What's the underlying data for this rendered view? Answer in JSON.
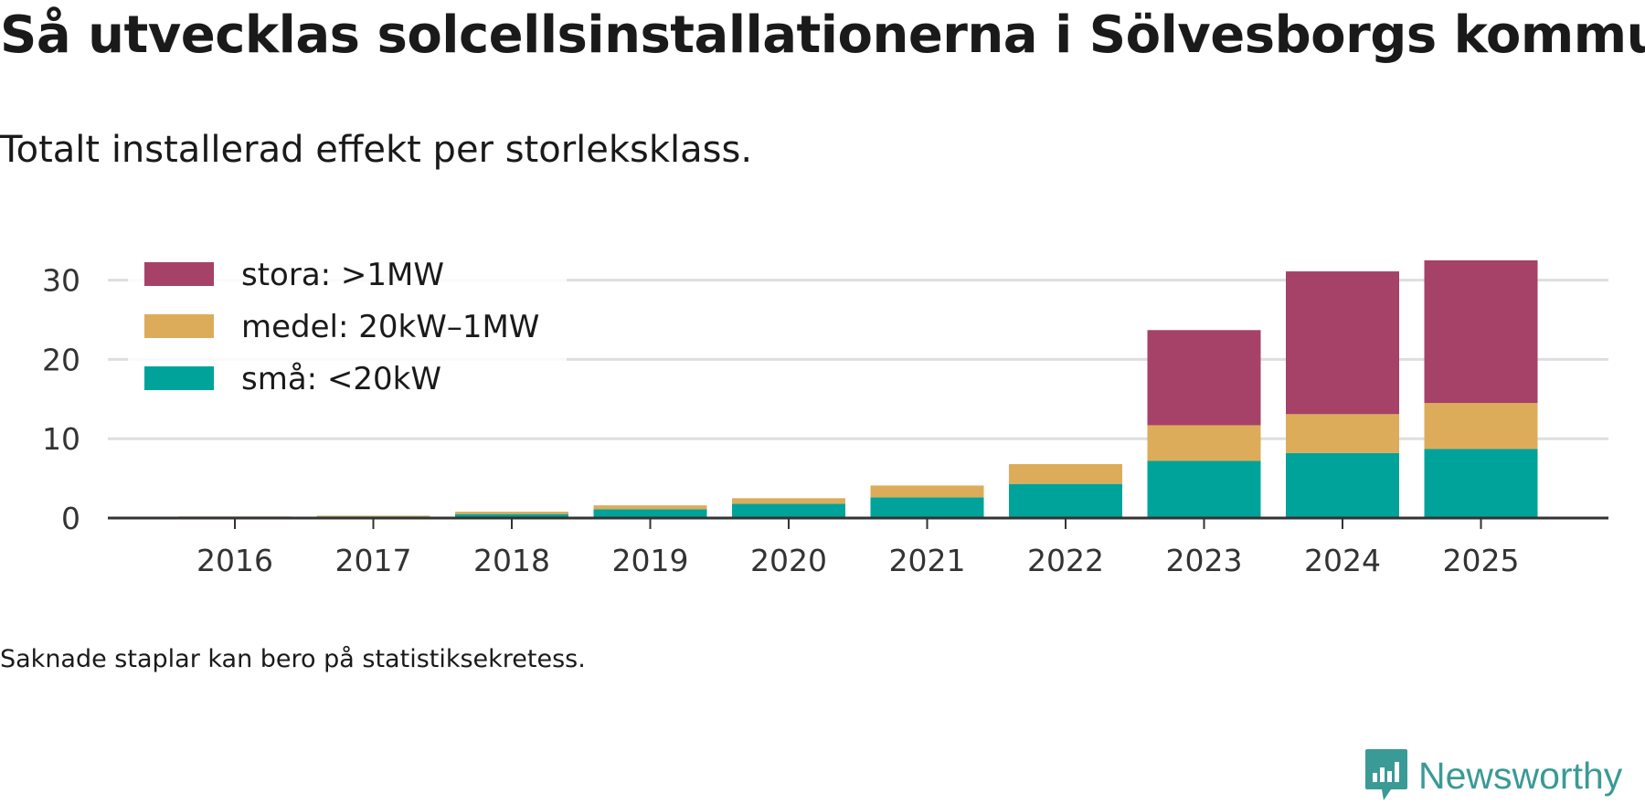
{
  "chart_data": {
    "type": "bar",
    "stacked": true,
    "title": "Så utvecklas solcellsinstallationerna i Sölvesborgs kommun",
    "subtitle": "Totalt installerad effekt per storleksklass.",
    "xlabel": "",
    "ylabel": "",
    "categories": [
      "2016",
      "2017",
      "2018",
      "2019",
      "2020",
      "2021",
      "2022",
      "2023",
      "2024",
      "2025"
    ],
    "ylim": [
      0,
      33
    ],
    "yticks": [
      0,
      10,
      20,
      30
    ],
    "grid": true,
    "legend_position": "top-left",
    "series": [
      {
        "name": "små: <20kW",
        "color": "#00a39a",
        "values": [
          0.1,
          0.2,
          0.5,
          1.1,
          1.8,
          2.6,
          4.3,
          7.2,
          8.2,
          8.7
        ]
      },
      {
        "name": "medel: 20kW–1MW",
        "color": "#ddac5a",
        "values": [
          0.1,
          0.1,
          0.3,
          0.5,
          0.7,
          1.5,
          2.5,
          4.5,
          4.9,
          5.8
        ]
      },
      {
        "name": "stora: >1MW",
        "color": "#a64168",
        "values": [
          0,
          0,
          0,
          0,
          0,
          0,
          0,
          12.0,
          18.0,
          18.0
        ]
      }
    ]
  },
  "footnote": "Saknade staplar kan bero på statistiksekretess.",
  "brand": {
    "name": "Newsworthy",
    "color": "#3a9a95"
  }
}
